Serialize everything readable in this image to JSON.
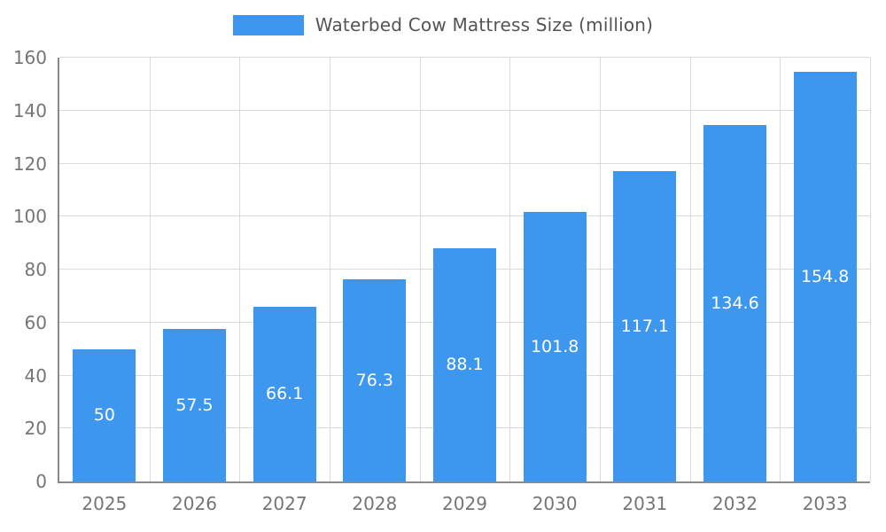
{
  "legend": {
    "label": "Waterbed Cow Mattress Size (million)"
  },
  "chart_data": {
    "type": "bar",
    "title": "Waterbed Cow Mattress Size (million)",
    "categories": [
      "2025",
      "2026",
      "2027",
      "2028",
      "2029",
      "2030",
      "2031",
      "2032",
      "2033"
    ],
    "values": [
      50,
      57.5,
      66.1,
      76.3,
      88.1,
      101.8,
      117.1,
      134.6,
      154.8
    ],
    "value_labels": [
      "50",
      "57.5",
      "66.1",
      "76.3",
      "88.1",
      "101.8",
      "117.1",
      "134.6",
      "154.8"
    ],
    "xlabel": "",
    "ylabel": "",
    "ylim": [
      0,
      160
    ],
    "yticks": [
      0,
      20,
      40,
      60,
      80,
      100,
      120,
      140,
      160
    ],
    "grid": true,
    "legend_position": "top",
    "bar_color": "#3E97EE",
    "grid_color": "#dadada",
    "axis_color": "#8a8a8a",
    "tick_label_color": "#757575",
    "title_color": "#545454",
    "value_label_color": "#ffffff"
  }
}
